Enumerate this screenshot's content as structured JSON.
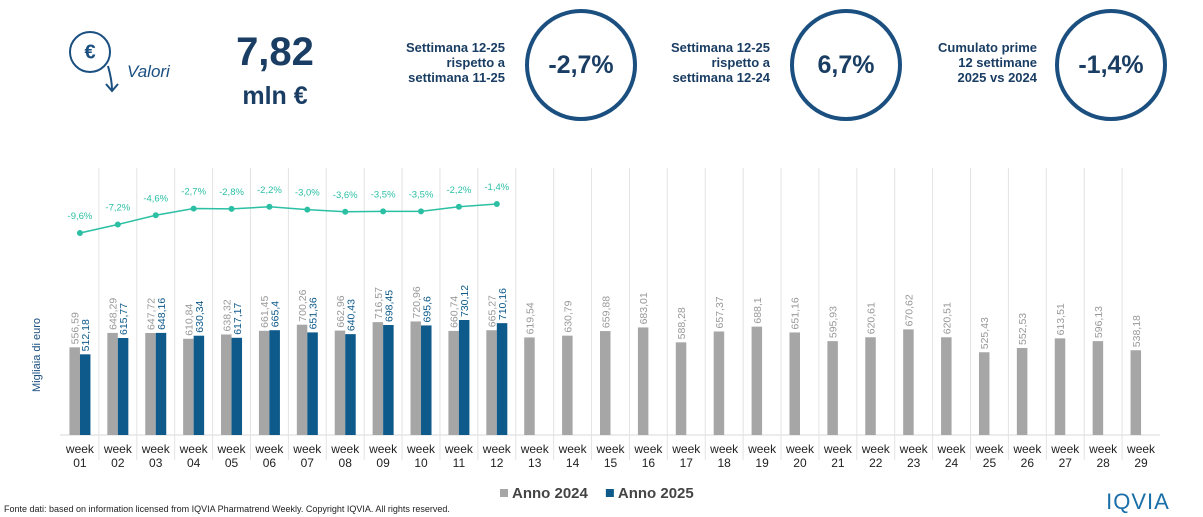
{
  "header": {
    "icon": "€",
    "label": "Valori",
    "total": "7,82",
    "unit": "mln €",
    "kpis": [
      {
        "lines": [
          "Settimana 12-25",
          "rispetto a",
          "settimana 11-25"
        ],
        "value": "-2,7%"
      },
      {
        "lines": [
          "Settimana 12-25",
          "rispetto a",
          "settimana 12-24"
        ],
        "value": "6,7%"
      },
      {
        "lines": [
          "Cumulato prime",
          "12 settimane",
          "2025 vs 2024"
        ],
        "value": "-1,4%"
      }
    ]
  },
  "chart_data": {
    "type": "bar",
    "y_label": "Migliaia di euro",
    "categories": [
      "week 01",
      "week 02",
      "week 03",
      "week 04",
      "week 05",
      "week 06",
      "week 07",
      "week 08",
      "week 09",
      "week 10",
      "week 11",
      "week 12",
      "week 13",
      "week 14",
      "week 15",
      "week 16",
      "week 17",
      "week 18",
      "week 19",
      "week 20",
      "week 21",
      "week 22",
      "week 23",
      "week 24",
      "week 25",
      "week 26",
      "week 27",
      "week 28",
      "week 29"
    ],
    "ylim": [
      0,
      800
    ],
    "y2lim": [
      -12,
      0
    ],
    "series": [
      {
        "name": "Anno 2024",
        "color": "#a6a6a6",
        "values": [
          556.59,
          648.29,
          647.72,
          610.84,
          638.32,
          661.45,
          700.26,
          662.96,
          716.57,
          720.96,
          660.74,
          665.27,
          619.54,
          630.79,
          659.88,
          683.01,
          588.28,
          657.37,
          688.1,
          651.16,
          595.93,
          620.61,
          670.62,
          620.51,
          525.43,
          552.53,
          613.51,
          596.13,
          538.18
        ],
        "value_labels": [
          "556,59",
          "648,29",
          "647,72",
          "610,84",
          "638,32",
          "661,45",
          "700,26",
          "662,96",
          "716,57",
          "720,96",
          "660,74",
          "665,27",
          "619,54",
          "630,79",
          "659,88",
          "683,01",
          "588,28",
          "657,37",
          "688,1",
          "651,16",
          "595,93",
          "620,61",
          "670,62",
          "620,51",
          "525,43",
          "552,53",
          "613,51",
          "596,13",
          "538,18"
        ]
      },
      {
        "name": "Anno 2025",
        "color": "#0e5a8a",
        "values": [
          512.18,
          615.77,
          648.16,
          630.34,
          617.17,
          665.4,
          651.36,
          640.43,
          698.45,
          695.6,
          730.12,
          710.16,
          null,
          null,
          null,
          null,
          null,
          null,
          null,
          null,
          null,
          null,
          null,
          null,
          null,
          null,
          null,
          null,
          null
        ],
        "value_labels": [
          "512,18",
          "615,77",
          "648,16",
          "630,34",
          "617,17",
          "665,4",
          "651,36",
          "640,43",
          "698,45",
          "695,6",
          "730,12",
          "710,16",
          null,
          null,
          null,
          null,
          null,
          null,
          null,
          null,
          null,
          null,
          null,
          null,
          null,
          null,
          null,
          null,
          null
        ]
      },
      {
        "type": "line",
        "axis": "y2",
        "color": "#2bbfa4",
        "values": [
          -9.6,
          -7.2,
          -4.6,
          -2.7,
          -2.8,
          -2.2,
          -3.0,
          -3.6,
          -3.5,
          -3.5,
          -2.2,
          -1.4,
          null,
          null,
          null,
          null,
          null,
          null,
          null,
          null,
          null,
          null,
          null,
          null,
          null,
          null,
          null,
          null,
          null
        ],
        "value_labels": [
          "-9,6%",
          "-7,2%",
          "-4,6%",
          "-2,7%",
          "-2,8%",
          "-2,2%",
          "-3,0%",
          "-3,6%",
          "-3,5%",
          "-3,5%",
          "-2,2%",
          "-1,4%",
          null,
          null,
          null,
          null,
          null,
          null,
          null,
          null,
          null,
          null,
          null,
          null,
          null,
          null,
          null,
          null,
          null
        ]
      }
    ],
    "source": "Fonte dati: based on information licensed from IQVIA Pharmatrend Weekly. Copyright IQVIA. All rights reserved.",
    "logo": "IQVIA"
  }
}
